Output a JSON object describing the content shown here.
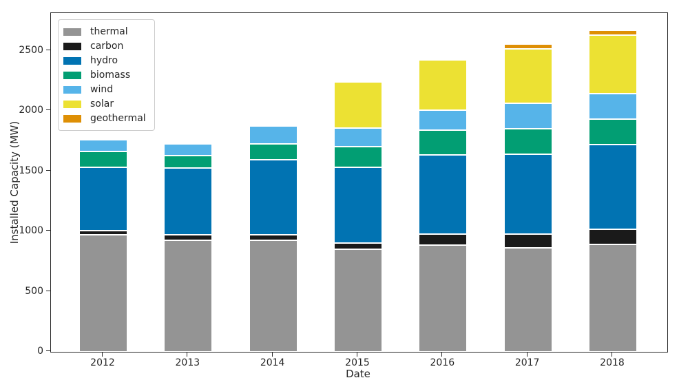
{
  "figure": {
    "background": "#ffffff",
    "text_color": "#262626",
    "spine_color": "#262626"
  },
  "chart_data": {
    "type": "bar",
    "stacked": true,
    "title": "",
    "xlabel": "Date",
    "ylabel": "Installed Capacity (MW)",
    "categories": [
      "2012",
      "2013",
      "2014",
      "2015",
      "2016",
      "2017",
      "2018"
    ],
    "series": [
      {
        "name": "thermal",
        "color": "#949494",
        "values": [
          975,
          925,
          925,
          855,
          885,
          865,
          890
        ]
      },
      {
        "name": "carbon",
        "color": "#1a1a1a",
        "values": [
          30,
          50,
          50,
          50,
          95,
          115,
          130
        ]
      },
      {
        "name": "hydro",
        "color": "#0173b2",
        "values": [
          530,
          550,
          620,
          630,
          655,
          660,
          705
        ]
      },
      {
        "name": "biomass",
        "color": "#029e73",
        "values": [
          130,
          105,
          135,
          170,
          210,
          215,
          210
        ]
      },
      {
        "name": "wind",
        "color": "#56b4e9",
        "values": [
          100,
          100,
          145,
          155,
          165,
          210,
          210
        ]
      },
      {
        "name": "solar",
        "color": "#ece133",
        "values": [
          0,
          0,
          0,
          385,
          415,
          455,
          485
        ]
      },
      {
        "name": "geothermal",
        "color": "#de8f05",
        "values": [
          0,
          0,
          0,
          0,
          0,
          40,
          40
        ]
      }
    ],
    "yticks": [
      0,
      500,
      1000,
      1500,
      2000,
      2500
    ],
    "ylim": [
      0,
      2815
    ],
    "grid": false,
    "legend_position": "upper left"
  }
}
